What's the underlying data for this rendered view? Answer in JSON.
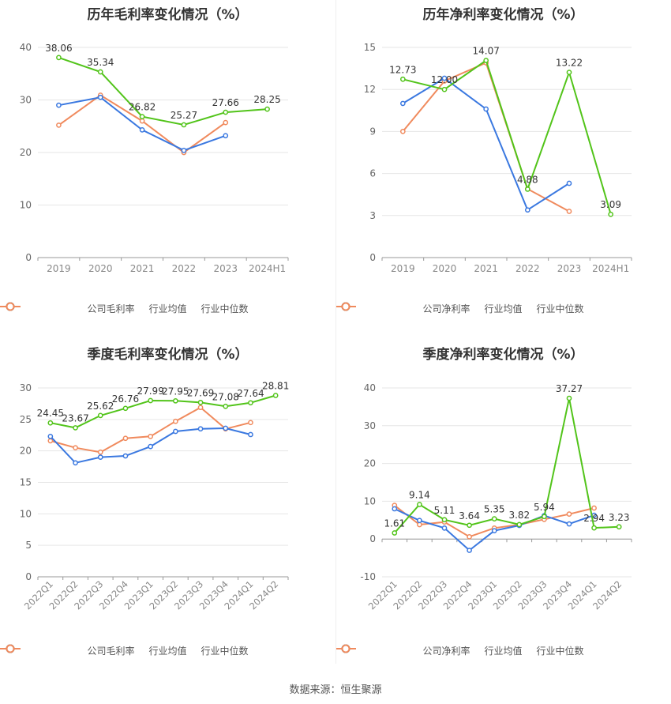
{
  "source": "数据来源：恒生聚源",
  "colors": {
    "company": "#52c41a",
    "avg": "#3a78e0",
    "median": "#f08a5d"
  },
  "chart_data": [
    {
      "type": "line",
      "title": "历年毛利率变化情况（%）",
      "categories": [
        "2019",
        "2020",
        "2021",
        "2022",
        "2023",
        "2024H1"
      ],
      "ylim": [
        0,
        40
      ],
      "yticks": [
        0,
        10,
        20,
        30,
        40
      ],
      "rotate_labels": false,
      "series": [
        {
          "name": "公司毛利率",
          "role": "company",
          "values": [
            38.06,
            35.34,
            26.82,
            25.27,
            27.66,
            28.25
          ],
          "labels": [
            "38.06",
            "35.34",
            "26.82",
            "25.27",
            "27.66",
            "28.25"
          ]
        },
        {
          "name": "行业均值",
          "role": "avg",
          "values": [
            29.0,
            30.5,
            24.3,
            20.4,
            23.2,
            null
          ]
        },
        {
          "name": "行业中位数",
          "role": "median",
          "values": [
            25.2,
            30.9,
            26.0,
            20.0,
            25.7,
            null
          ]
        }
      ]
    },
    {
      "type": "line",
      "title": "历年净利率变化情况（%）",
      "categories": [
        "2019",
        "2020",
        "2021",
        "2022",
        "2023",
        "2024H1"
      ],
      "ylim": [
        0,
        15
      ],
      "yticks": [
        0,
        3,
        6,
        9,
        12,
        15
      ],
      "rotate_labels": false,
      "series": [
        {
          "name": "公司净利率",
          "role": "company",
          "values": [
            12.73,
            12.0,
            14.07,
            4.88,
            13.22,
            3.09
          ],
          "labels": [
            "12.73",
            "12.00",
            "14.07",
            "4.88",
            "13.22",
            "3.09"
          ]
        },
        {
          "name": "行业均值",
          "role": "avg",
          "values": [
            11.0,
            12.8,
            10.6,
            3.4,
            5.3,
            null
          ]
        },
        {
          "name": "行业中位数",
          "role": "median",
          "values": [
            9.0,
            12.6,
            13.9,
            4.9,
            3.3,
            null
          ]
        }
      ]
    },
    {
      "type": "line",
      "title": "季度毛利率变化情况（%）",
      "categories": [
        "2022Q1",
        "2022Q2",
        "2022Q3",
        "2022Q4",
        "2023Q1",
        "2023Q2",
        "2023Q3",
        "2023Q4",
        "2024Q1",
        "2024Q2"
      ],
      "ylim": [
        0,
        30
      ],
      "yticks": [
        0,
        5,
        10,
        15,
        20,
        25,
        30
      ],
      "rotate_labels": true,
      "series": [
        {
          "name": "公司毛利率",
          "role": "company",
          "values": [
            24.45,
            23.67,
            25.62,
            26.76,
            27.99,
            27.95,
            27.69,
            27.08,
            27.64,
            28.81
          ],
          "labels": [
            "24.45",
            "23.67",
            "25.62",
            "26.76",
            "27.99",
            "27.95",
            "27.69",
            "27.08",
            "27.64",
            "28.81"
          ]
        },
        {
          "name": "行业均值",
          "role": "avg",
          "values": [
            22.3,
            18.1,
            19.0,
            19.2,
            20.7,
            23.1,
            23.5,
            23.6,
            22.6,
            null
          ]
        },
        {
          "name": "行业中位数",
          "role": "median",
          "values": [
            21.6,
            20.5,
            19.8,
            22.0,
            22.3,
            24.7,
            26.9,
            23.5,
            24.5,
            null
          ]
        }
      ]
    },
    {
      "type": "line",
      "title": "季度净利率变化情况（%）",
      "categories": [
        "2022Q1",
        "2022Q2",
        "2022Q3",
        "2022Q4",
        "2023Q1",
        "2023Q2",
        "2023Q3",
        "2023Q4",
        "2024Q1",
        "2024Q2"
      ],
      "ylim": [
        -10,
        40
      ],
      "yticks": [
        -10,
        0,
        10,
        20,
        30,
        40
      ],
      "rotate_labels": true,
      "series": [
        {
          "name": "公司净利率",
          "role": "company",
          "values": [
            1.61,
            9.14,
            5.11,
            3.64,
            5.35,
            3.82,
            5.94,
            37.27,
            2.94,
            3.23
          ],
          "labels": [
            "1.61",
            "9.14",
            "5.11",
            "3.64",
            "5.35",
            "3.82",
            "5.94",
            "37.27",
            "2.94",
            "3.23"
          ]
        },
        {
          "name": "行业均值",
          "role": "avg",
          "values": [
            8.0,
            4.9,
            2.9,
            -3.0,
            2.2,
            3.6,
            6.2,
            4.0,
            6.3,
            null
          ]
        },
        {
          "name": "行业中位数",
          "role": "median",
          "values": [
            8.9,
            3.8,
            4.5,
            0.6,
            2.9,
            3.8,
            5.2,
            6.6,
            8.2,
            null
          ]
        }
      ]
    }
  ]
}
